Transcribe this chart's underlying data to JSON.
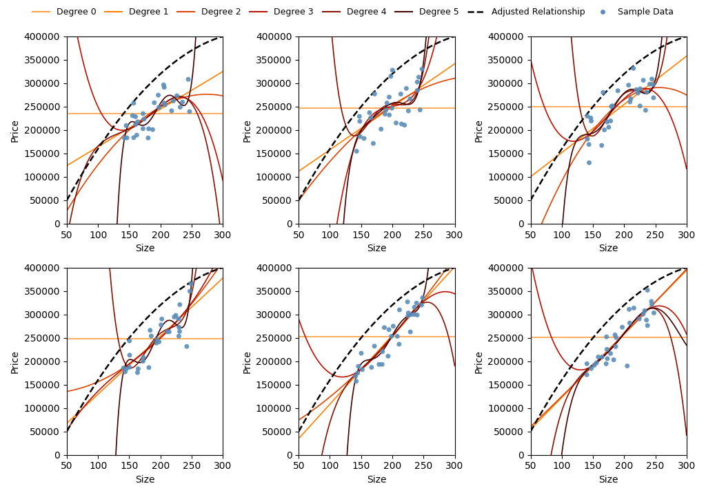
{
  "figsize": [
    10.24,
    7.19
  ],
  "dpi": 100,
  "nrows": 2,
  "ncols": 3,
  "x_range": [
    50,
    300
  ],
  "y_range": [
    0,
    400000
  ],
  "xlabel": "Size",
  "ylabel": "Price",
  "degree_colors": [
    "#FFA040",
    "#FF8000",
    "#DD4400",
    "#BB1100",
    "#881100",
    "#440000"
  ],
  "degree_linewidths": [
    1.2,
    1.2,
    1.2,
    1.2,
    1.2,
    1.2
  ],
  "adjusted_color": "black",
  "adjusted_linestyle": "--",
  "adjusted_linewidth": 1.8,
  "scatter_color": "#5B8DB8",
  "scatter_size": 25,
  "scatter_alpha": 0.9,
  "n_samples": 30,
  "noise_scale": 30000,
  "legend_ncol": 8,
  "degree_labels": [
    "Degree 0",
    "Degree 1",
    "Degree 2",
    "Degree 3",
    "Degree 4",
    "Degree 5"
  ],
  "adjusted_label": "Adjusted Relationship",
  "sample_label": "Sample Data",
  "true_a": -200000,
  "true_b": 3500,
  "true_c": -6.0,
  "adj_a": -80000,
  "adj_b": 2800,
  "adj_c": -4.0,
  "x_sample_low": 140,
  "x_sample_high": 250,
  "random_seeds": [
    42,
    7,
    13,
    99,
    55,
    23
  ]
}
